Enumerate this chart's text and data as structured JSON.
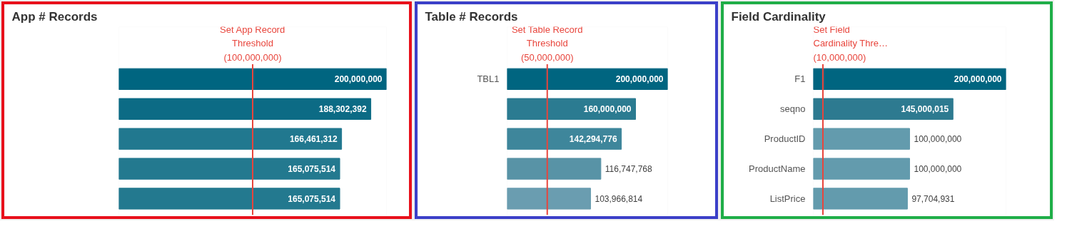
{
  "chart_data": [
    {
      "type": "bar",
      "orientation": "horizontal",
      "title": "App # Records",
      "categories": [
        null,
        null,
        null,
        null,
        null
      ],
      "values": [
        200000000,
        188302392,
        166461312,
        165075514,
        165075514
      ],
      "value_labels": [
        "200,000,000",
        "188,302,392",
        "166,461,312",
        "165,075,514",
        "165,075,514"
      ],
      "colors": [
        "#006580",
        "#0c6b85",
        "#21788f",
        "#23798f",
        "#23798f"
      ],
      "tick_labels": "y",
      "ref_lines": [
        {
          "axis": "x",
          "value": 100000000,
          "label": "Set App Record Threshold (100,000,000)",
          "color": "#e8453c"
        }
      ]
    },
    {
      "type": "bar",
      "orientation": "horizontal",
      "title": "Table # Records",
      "categories": [
        "TBL1",
        null,
        null,
        null,
        null
      ],
      "values": [
        200000000,
        160000000,
        142294776,
        116747768,
        103966814
      ],
      "value_labels": [
        "200,000,000",
        "160,000,000",
        "142,294,776",
        "116,747,768",
        "103,966,814"
      ],
      "colors": [
        "#006580",
        "#2b7b91",
        "#3e869b",
        "#5893a6",
        "#6a9db0"
      ],
      "tick_labels": "y",
      "ref_lines": [
        {
          "axis": "x",
          "value": 50000000,
          "label": "Set Table Record Threshold (50,000,000)",
          "color": "#e8453c"
        }
      ]
    },
    {
      "type": "bar",
      "orientation": "horizontal",
      "title": "Field Cardinality",
      "categories": [
        "F1",
        "seqno",
        "ProductID",
        "ProductName",
        "ListPrice"
      ],
      "values": [
        200000000,
        145000015,
        100000000,
        100000000,
        97704931
      ],
      "value_labels": [
        "200,000,000",
        "145,000,015",
        "100,000,000",
        "100,000,000",
        "97,704,931"
      ],
      "colors": [
        "#006580",
        "#2d7a90",
        "#639bad",
        "#639bad",
        "#639bad"
      ],
      "tick_labels": "y",
      "ref_lines": [
        {
          "axis": "x",
          "value": 10000000,
          "label": "Set Field Cardinality Thre… (10,000,000)",
          "color": "#e8453c"
        }
      ]
    }
  ]
}
